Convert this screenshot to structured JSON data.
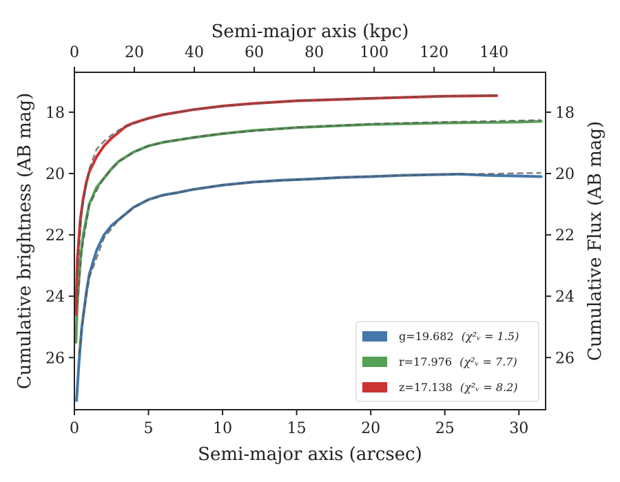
{
  "chart_data": {
    "type": "line",
    "xlabel": "Semi-major axis (arcsec)",
    "x2label": "Semi-major axis (kpc)",
    "ylabel": "Cumulative brightness (AB mag)",
    "y2label": "Cumulative Flux (AB mag)",
    "xlim": [
      0,
      31.8
    ],
    "x2lim": [
      0,
      157.2
    ],
    "ylim": [
      27.7,
      16.7
    ],
    "y_inverted": true,
    "x_ticks": [
      0,
      5,
      10,
      15,
      20,
      25,
      30
    ],
    "x2_ticks": [
      0,
      20,
      40,
      60,
      80,
      100,
      120,
      140
    ],
    "y_ticks": [
      18,
      20,
      22,
      24,
      26
    ],
    "legend_position": "lower-right",
    "grid": false,
    "series": [
      {
        "name": "g",
        "legend_label": "g=19.682",
        "legend_chi": "(χ²ᵥ = 1.5)",
        "color": "#4477aa",
        "x": [
          0.15,
          0.3,
          0.5,
          0.8,
          1.0,
          1.5,
          2.0,
          2.5,
          3.0,
          3.5,
          4.0,
          5.0,
          6.0,
          7.0,
          8.0,
          10.0,
          12.0,
          14.0,
          16.0,
          18.0,
          20.0,
          22.0,
          24.0,
          26.0,
          28.0,
          30.0,
          31.5
        ],
        "y": [
          27.4,
          26.2,
          25.0,
          23.9,
          23.3,
          22.5,
          22.0,
          21.7,
          21.5,
          21.3,
          21.1,
          20.85,
          20.7,
          20.62,
          20.52,
          20.38,
          20.28,
          20.22,
          20.18,
          20.13,
          20.1,
          20.06,
          20.04,
          20.02,
          20.06,
          20.08,
          20.1
        ],
        "fit_x": [
          0.3,
          0.5,
          1.0,
          2.0,
          3.0,
          4.0,
          5.0,
          6.0,
          8.0,
          10.0,
          12.0,
          15.0,
          18.0,
          20.0,
          25.0,
          28.0,
          31.5
        ],
        "fit_y": [
          25.9,
          25.0,
          23.4,
          22.1,
          21.5,
          21.12,
          20.86,
          20.72,
          20.52,
          20.38,
          20.29,
          20.2,
          20.12,
          20.09,
          20.03,
          20.01,
          19.98
        ]
      },
      {
        "name": "r",
        "legend_label": "r=17.976",
        "legend_chi": "(χ²ᵥ = 7.7)",
        "color": "#55a054",
        "x": [
          0.1,
          0.2,
          0.4,
          0.6,
          0.8,
          1.0,
          1.5,
          2.0,
          2.5,
          3.0,
          3.5,
          4.0,
          5.0,
          6.0,
          8.0,
          10.0,
          12.0,
          15.0,
          20.0,
          25.0,
          30.0,
          31.5
        ],
        "y": [
          25.5,
          24.2,
          22.8,
          22.0,
          21.5,
          21.0,
          20.45,
          20.15,
          19.85,
          19.6,
          19.45,
          19.3,
          19.1,
          18.98,
          18.83,
          18.7,
          18.6,
          18.5,
          18.4,
          18.35,
          18.32,
          18.3
        ],
        "fit_x": [
          0.2,
          0.5,
          1.0,
          1.5,
          2.0,
          2.5,
          3.0,
          4.0,
          5.0,
          6.0,
          8.0,
          10.0,
          15.0,
          20.0,
          25.0,
          31.5
        ],
        "fit_y": [
          24.3,
          22.5,
          21.05,
          20.55,
          20.15,
          19.85,
          19.62,
          19.3,
          19.1,
          18.98,
          18.82,
          18.7,
          18.5,
          18.38,
          18.32,
          18.26
        ]
      },
      {
        "name": "z",
        "legend_label": "z=17.138",
        "legend_chi": "(χ²ᵥ = 8.2)",
        "color": "#cc3333",
        "x": [
          0.1,
          0.2,
          0.4,
          0.6,
          0.8,
          1.0,
          1.5,
          2.0,
          2.5,
          3.0,
          3.5,
          4.0,
          5.0,
          6.0,
          8.0,
          10.0,
          12.0,
          15.0,
          20.0,
          25.0,
          28.5
        ],
        "y": [
          24.6,
          22.8,
          21.5,
          20.8,
          20.3,
          19.95,
          19.45,
          19.1,
          18.85,
          18.65,
          18.45,
          18.35,
          18.2,
          18.08,
          17.92,
          17.8,
          17.72,
          17.63,
          17.55,
          17.48,
          17.46
        ],
        "fit_x": [
          0.2,
          0.5,
          1.0,
          1.5,
          2.0,
          2.5,
          3.0,
          4.0,
          5.0,
          6.0,
          8.0,
          10.0,
          15.0,
          20.0,
          25.0,
          28.5
        ],
        "fit_y": [
          23.3,
          21.2,
          19.85,
          19.2,
          18.95,
          18.75,
          18.58,
          18.38,
          18.2,
          18.08,
          17.92,
          17.8,
          17.63,
          17.54,
          17.48,
          17.45
        ]
      }
    ]
  }
}
